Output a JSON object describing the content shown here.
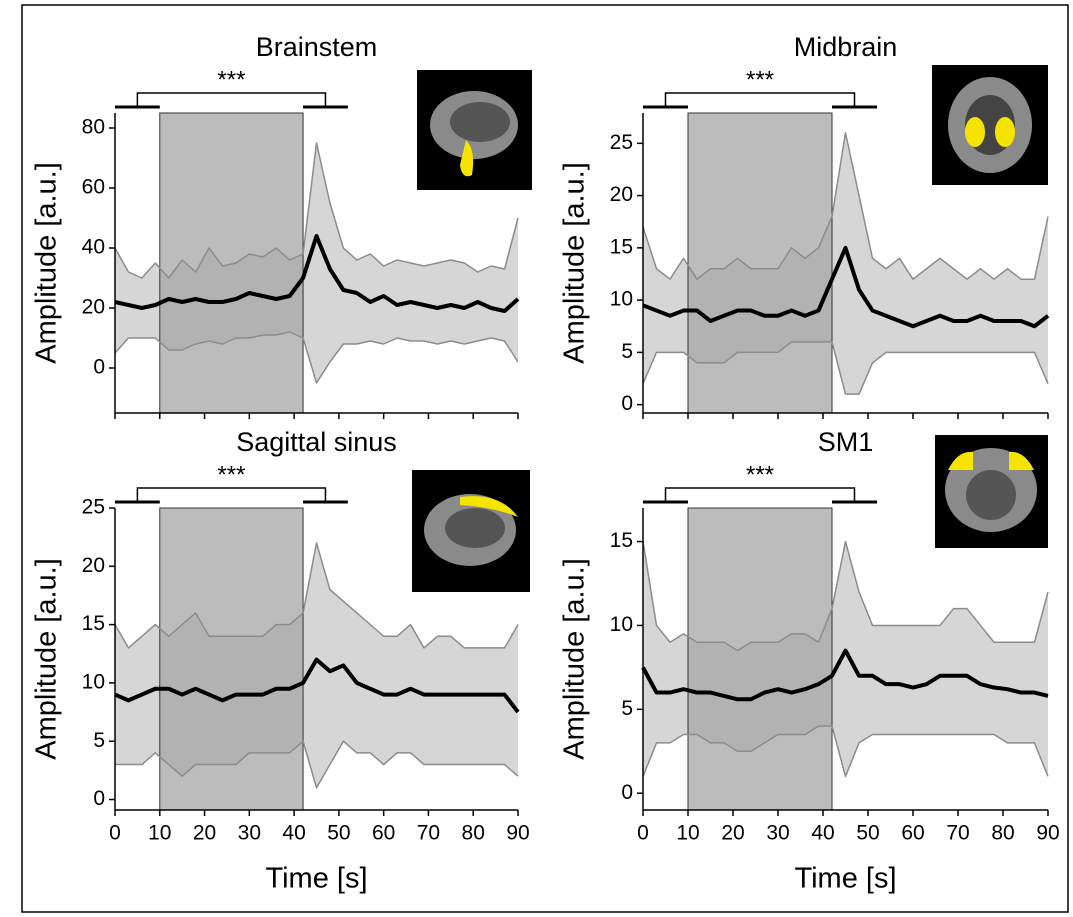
{
  "chart_data": [
    {
      "type": "line",
      "title": "Brainstem",
      "ylabel": "Amplitude [a.u.]",
      "x": [
        0,
        3,
        6,
        9,
        12,
        15,
        18,
        21,
        24,
        27,
        30,
        33,
        36,
        39,
        42,
        45,
        48,
        51,
        54,
        57,
        60,
        63,
        66,
        69,
        72,
        75,
        78,
        81,
        84,
        87,
        90
      ],
      "mean": [
        22,
        21,
        20,
        21,
        23,
        22,
        23,
        22,
        22,
        23,
        25,
        24,
        23,
        24,
        30,
        44,
        33,
        26,
        25,
        22,
        24,
        21,
        22,
        21,
        20,
        21,
        20,
        22,
        20,
        19,
        23
      ],
      "upper": [
        40,
        32,
        30,
        35,
        30,
        36,
        32,
        40,
        34,
        35,
        38,
        37,
        40,
        36,
        38,
        75,
        55,
        40,
        36,
        38,
        34,
        36,
        35,
        34,
        35,
        36,
        35,
        32,
        34,
        33,
        50
      ],
      "lower": [
        5,
        10,
        10,
        10,
        6,
        6,
        8,
        9,
        8,
        10,
        10,
        11,
        11,
        12,
        10,
        -5,
        2,
        8,
        8,
        9,
        8,
        10,
        9,
        9,
        8,
        9,
        8,
        9,
        10,
        9,
        2
      ],
      "color": "#000000",
      "band_color": "#c8c8c8",
      "shade_color": "#a6a6a6",
      "shaded_region": [
        10,
        42
      ],
      "significance": {
        "label": "***",
        "groups": [
          [
            0,
            10
          ],
          [
            42,
            52
          ]
        ]
      },
      "xlim": [
        0,
        90
      ],
      "xticks": [
        0,
        10,
        20,
        30,
        40,
        50,
        60,
        70,
        80,
        90
      ],
      "show_xtick_labels": false,
      "ylim": [
        -15,
        85
      ],
      "yticks": [
        0,
        20,
        40,
        60,
        80
      ]
    },
    {
      "type": "line",
      "title": "Midbrain",
      "ylabel": "Amplitude [a.u.]",
      "x": [
        0,
        3,
        6,
        9,
        12,
        15,
        18,
        21,
        24,
        27,
        30,
        33,
        36,
        39,
        42,
        45,
        48,
        51,
        54,
        57,
        60,
        63,
        66,
        69,
        72,
        75,
        78,
        81,
        84,
        87,
        90
      ],
      "mean": [
        9.5,
        9,
        8.5,
        9,
        9,
        8,
        8.5,
        9,
        9,
        8.5,
        8.5,
        9,
        8.5,
        9,
        12,
        15,
        11,
        9,
        8.5,
        8,
        7.5,
        8,
        8.5,
        8,
        8,
        8.5,
        8,
        8,
        8,
        7.5,
        8.5
      ],
      "upper": [
        17,
        13,
        12,
        14,
        12,
        13,
        13,
        14,
        13,
        13,
        13,
        15,
        14,
        15,
        18,
        26,
        20,
        14,
        13,
        14,
        12,
        13,
        14,
        13,
        12,
        13,
        12,
        13,
        12,
        12,
        18
      ],
      "lower": [
        2,
        5,
        5,
        5,
        4,
        4,
        4,
        5,
        5,
        5,
        5,
        6,
        6,
        6,
        6,
        1,
        1,
        4,
        5,
        5,
        5,
        5,
        5,
        5,
        5,
        5,
        5,
        5,
        5,
        5,
        2
      ],
      "color": "#000000",
      "band_color": "#c8c8c8",
      "shade_color": "#a6a6a6",
      "shaded_region": [
        10,
        42
      ],
      "significance": {
        "label": "***",
        "groups": [
          [
            0,
            10
          ],
          [
            42,
            52
          ]
        ]
      },
      "xlim": [
        0,
        90
      ],
      "xticks": [
        0,
        10,
        20,
        30,
        40,
        50,
        60,
        70,
        80,
        90
      ],
      "show_xtick_labels": false,
      "ylim": [
        -0.8,
        27.9
      ],
      "yticks": [
        0,
        5,
        10,
        15,
        20,
        25
      ]
    },
    {
      "type": "line",
      "title": "Sagittal sinus",
      "ylabel": "Amplitude [a.u.]",
      "xlabel": "Time [s]",
      "x": [
        0,
        3,
        6,
        9,
        12,
        15,
        18,
        21,
        24,
        27,
        30,
        33,
        36,
        39,
        42,
        45,
        48,
        51,
        54,
        57,
        60,
        63,
        66,
        69,
        72,
        75,
        78,
        81,
        84,
        87,
        90
      ],
      "mean": [
        9,
        8.5,
        9,
        9.5,
        9.5,
        9,
        9.5,
        9,
        8.5,
        9,
        9,
        9,
        9.5,
        9.5,
        10,
        12,
        11,
        11.5,
        10,
        9.5,
        9,
        9,
        9.5,
        9,
        9,
        9,
        9,
        9,
        9,
        9,
        7.5
      ],
      "upper": [
        15,
        13,
        14,
        15,
        14,
        15,
        16,
        14,
        14,
        14,
        14,
        14,
        15,
        15,
        16,
        22,
        18,
        17,
        16,
        15,
        14,
        14,
        15,
        13,
        14,
        14,
        13,
        13,
        13,
        13,
        15
      ],
      "lower": [
        3,
        3,
        3,
        4,
        3,
        2,
        3,
        3,
        3,
        3,
        4,
        4,
        4,
        4,
        5,
        1,
        3,
        5,
        4,
        4,
        3,
        4,
        4,
        3,
        3,
        3,
        3,
        3,
        3,
        3,
        2
      ],
      "color": "#000000",
      "band_color": "#c8c8c8",
      "shade_color": "#a6a6a6",
      "shaded_region": [
        10,
        42
      ],
      "significance": {
        "label": "***",
        "groups": [
          [
            0,
            10
          ],
          [
            42,
            52
          ]
        ]
      },
      "xlim": [
        0,
        90
      ],
      "xticks": [
        0,
        10,
        20,
        30,
        40,
        50,
        60,
        70,
        80,
        90
      ],
      "show_xtick_labels": true,
      "ylim": [
        -0.9,
        25
      ],
      "yticks": [
        0,
        5,
        10,
        15,
        20,
        25
      ]
    },
    {
      "type": "line",
      "title": "SM1",
      "ylabel": "Amplitude [a.u.]",
      "xlabel": "Time [s]",
      "x": [
        0,
        3,
        6,
        9,
        12,
        15,
        18,
        21,
        24,
        27,
        30,
        33,
        36,
        39,
        42,
        45,
        48,
        51,
        54,
        57,
        60,
        63,
        66,
        69,
        72,
        75,
        78,
        81,
        84,
        87,
        90
      ],
      "mean": [
        7.5,
        6,
        6,
        6.2,
        6,
        6,
        5.8,
        5.6,
        5.6,
        6,
        6.2,
        6,
        6.2,
        6.5,
        7,
        8.5,
        7,
        7,
        6.5,
        6.5,
        6.3,
        6.5,
        7,
        7,
        7,
        6.5,
        6.3,
        6.2,
        6,
        6,
        5.8
      ],
      "upper": [
        15,
        10,
        9,
        9.5,
        9,
        9,
        9,
        8.5,
        9,
        9,
        9,
        9.5,
        9.5,
        9,
        11,
        15,
        12,
        10,
        10,
        10,
        10,
        10,
        10,
        11,
        11,
        10,
        9,
        9,
        9,
        9,
        12
      ],
      "lower": [
        1,
        3,
        3,
        3.5,
        3.5,
        3,
        3,
        2.5,
        2.5,
        3,
        3.5,
        3.5,
        3.5,
        4,
        4,
        1,
        3,
        3.5,
        3.5,
        3.5,
        3.5,
        3.5,
        3.5,
        3.5,
        3.5,
        3.5,
        3.5,
        3,
        3,
        3,
        1
      ],
      "color": "#000000",
      "band_color": "#c8c8c8",
      "shade_color": "#a6a6a6",
      "shaded_region": [
        10,
        42
      ],
      "significance": {
        "label": "***",
        "groups": [
          [
            0,
            10
          ],
          [
            42,
            52
          ]
        ]
      },
      "xlim": [
        0,
        90
      ],
      "xticks": [
        0,
        10,
        20,
        30,
        40,
        50,
        60,
        70,
        80,
        90
      ],
      "show_xtick_labels": true,
      "ylim": [
        -1,
        17
      ],
      "yticks": [
        0,
        5,
        10,
        15
      ]
    }
  ]
}
